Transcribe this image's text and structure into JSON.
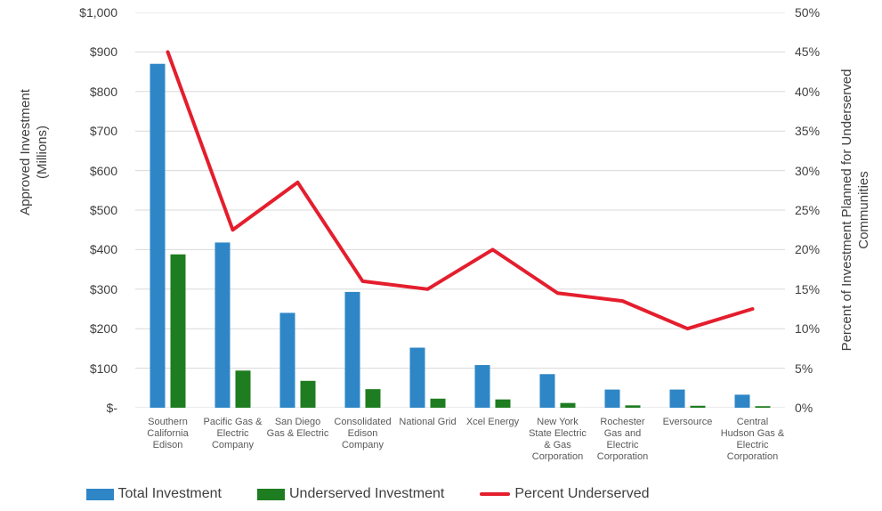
{
  "chart_data": {
    "type": "bar",
    "categories": [
      "Southern California Edison",
      "Pacific Gas & Electric Company",
      "San Diego Gas & Electric",
      "Consolidated Edison Company",
      "National Grid",
      "Xcel Energy",
      "New York State Electric & Gas Corporation",
      "Rochester Gas and Electric Corporation",
      "Eversource",
      "Central Hudson Gas & Electric Corporation"
    ],
    "series": [
      {
        "name": "Total Investment",
        "type": "bar",
        "axis": "left",
        "color": "#2E86C6",
        "values": [
          870,
          418,
          240,
          293,
          152,
          108,
          85,
          46,
          46,
          33
        ]
      },
      {
        "name": "Underserved Investment",
        "type": "bar",
        "axis": "left",
        "color": "#1E7D20",
        "values": [
          388,
          94,
          68,
          47,
          23,
          21,
          12,
          6,
          5,
          4
        ]
      },
      {
        "name": "Percent Underserved",
        "type": "line",
        "axis": "right",
        "color": "#E41E2D",
        "values": [
          45,
          22.5,
          28.5,
          16,
          15,
          20,
          14.5,
          13.5,
          10,
          12.5
        ]
      }
    ],
    "left_axis": {
      "title": "Approved Investment\n(Millions)",
      "min": 0,
      "max": 1000,
      "step": 100,
      "tick_labels": [
        "$1,000",
        "$900",
        "$800",
        "$700",
        "$600",
        "$500",
        "$400",
        "$300",
        "$200",
        "$100",
        "$-"
      ]
    },
    "right_axis": {
      "title": "Percent of Investment Planned for Underserved\nCommunities",
      "min": 0,
      "max": 50,
      "step": 5,
      "tick_labels": [
        "50%",
        "45%",
        "40%",
        "35%",
        "30%",
        "25%",
        "20%",
        "15%",
        "10%",
        "5%",
        "0%"
      ]
    },
    "grid": true,
    "legend_position": "bottom",
    "colors": {
      "gridline": "#D9D9D9",
      "tick_text": "#3F3F3F",
      "category_text": "#595959"
    }
  }
}
